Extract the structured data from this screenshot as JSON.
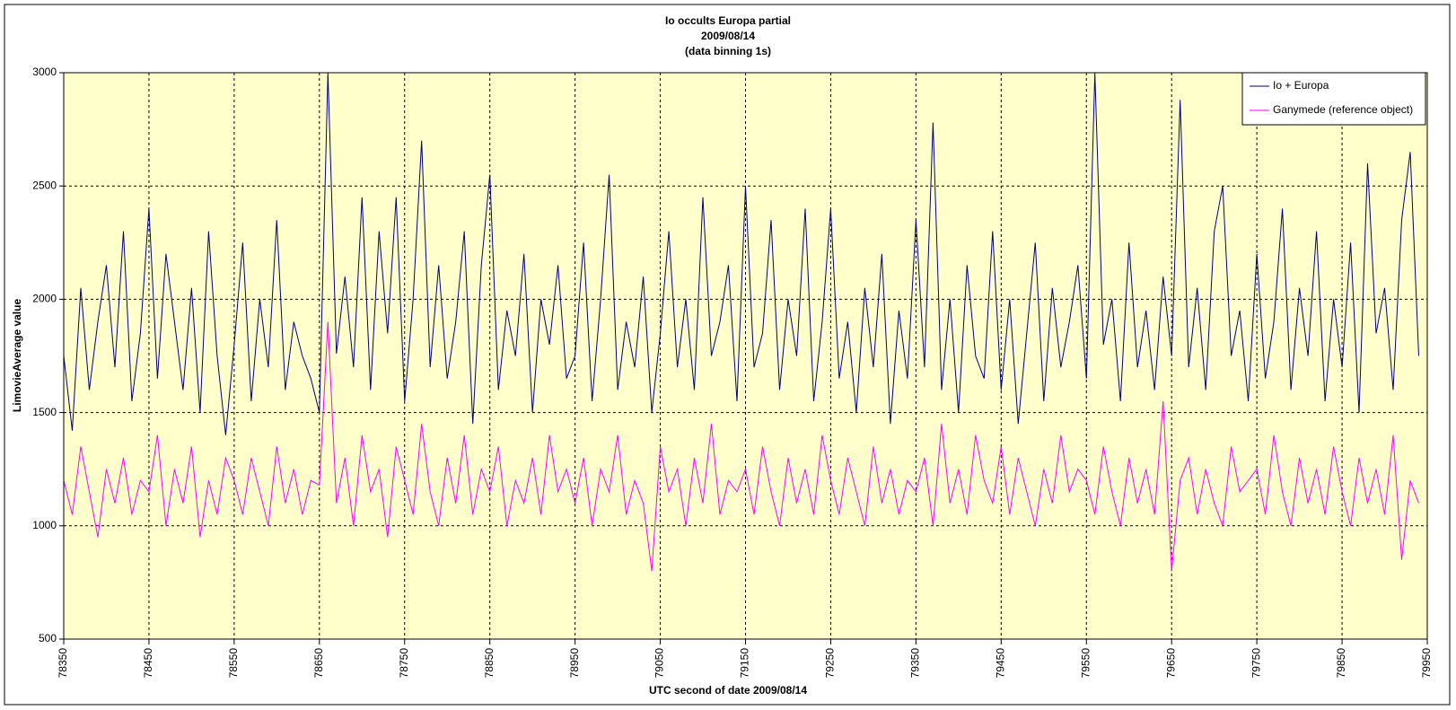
{
  "chart_data": {
    "type": "line",
    "title": [
      "Io occults Europa partial",
      "2009/08/14",
      "(data binning 1s)"
    ],
    "xlabel": "UTC second  of date 2009/08/14",
    "ylabel": "LimovieAverage value",
    "x": [
      78350,
      78360,
      78370,
      78380,
      78390,
      78400,
      78410,
      78420,
      78430,
      78440,
      78450,
      78460,
      78470,
      78480,
      78490,
      78500,
      78510,
      78520,
      78530,
      78540,
      78550,
      78560,
      78570,
      78580,
      78590,
      78600,
      78610,
      78620,
      78630,
      78640,
      78650,
      78660,
      78670,
      78680,
      78690,
      78700,
      78710,
      78720,
      78730,
      78740,
      78750,
      78760,
      78770,
      78780,
      78790,
      78800,
      78810,
      78820,
      78830,
      78840,
      78850,
      78860,
      78870,
      78880,
      78890,
      78900,
      78910,
      78920,
      78930,
      78940,
      78950,
      78960,
      78970,
      78980,
      78990,
      79000,
      79010,
      79020,
      79030,
      79040,
      79050,
      79060,
      79070,
      79080,
      79090,
      79100,
      79110,
      79120,
      79130,
      79140,
      79150,
      79160,
      79170,
      79180,
      79190,
      79200,
      79210,
      79220,
      79230,
      79240,
      79250,
      79260,
      79270,
      79280,
      79290,
      79300,
      79310,
      79320,
      79330,
      79340,
      79350,
      79360,
      79370,
      79380,
      79390,
      79400,
      79410,
      79420,
      79430,
      79440,
      79450,
      79460,
      79470,
      79480,
      79490,
      79500,
      79510,
      79520,
      79530,
      79540,
      79550,
      79560,
      79570,
      79580,
      79590,
      79600,
      79610,
      79620,
      79630,
      79640,
      79650,
      79660,
      79670,
      79680,
      79690,
      79700,
      79710,
      79720,
      79730,
      79740,
      79750,
      79760,
      79770,
      79780,
      79790,
      79800,
      79810,
      79820,
      79830,
      79840,
      79850,
      79860,
      79870,
      79880,
      79890,
      79900,
      79910,
      79920,
      79930,
      79940
    ],
    "series": [
      {
        "name": "Io + Europa",
        "color": "#000080",
        "values": [
          1750,
          1420,
          2050,
          1600,
          1900,
          2150,
          1700,
          2300,
          1550,
          1850,
          2400,
          1650,
          2200,
          1900,
          1600,
          2050,
          1500,
          2300,
          1750,
          1400,
          1800,
          2250,
          1550,
          2000,
          1700,
          2350,
          1600,
          1900,
          1750,
          1650,
          1500,
          3000,
          1760,
          2100,
          1700,
          2450,
          1600,
          2300,
          1850,
          2450,
          1550,
          2000,
          2700,
          1700,
          2150,
          1650,
          1900,
          2300,
          1450,
          2150,
          2550,
          1600,
          1950,
          1750,
          2200,
          1500,
          2000,
          1800,
          2150,
          1650,
          1750,
          2250,
          1550,
          2000,
          2550,
          1600,
          1900,
          1700,
          2100,
          1500,
          1850,
          2300,
          1700,
          2000,
          1600,
          2450,
          1750,
          1900,
          2150,
          1550,
          2500,
          1700,
          1850,
          2350,
          1600,
          2000,
          1750,
          2400,
          1550,
          1900,
          2400,
          1650,
          1900,
          1500,
          2050,
          1700,
          2200,
          1450,
          1950,
          1650,
          2350,
          1700,
          2780,
          1600,
          2000,
          1500,
          2150,
          1750,
          1650,
          2300,
          1600,
          2000,
          1450,
          1850,
          2250,
          1550,
          2050,
          1700,
          1900,
          2150,
          1650,
          3000,
          1800,
          2000,
          1550,
          2250,
          1700,
          1950,
          1600,
          2100,
          1750,
          2880,
          1700,
          2050,
          1600,
          2300,
          2500,
          1750,
          1950,
          1550,
          2200,
          1650,
          1900,
          2400,
          1600,
          2050,
          1750,
          2300,
          1550,
          2000,
          1700,
          2250,
          1500,
          2600,
          1850,
          2050,
          1600,
          2350,
          2650,
          1750
        ]
      },
      {
        "name": "Ganymede (reference object)",
        "color": "#ff00ff",
        "values": [
          1200,
          1050,
          1350,
          1150,
          950,
          1250,
          1100,
          1300,
          1050,
          1200,
          1150,
          1400,
          1000,
          1250,
          1100,
          1350,
          950,
          1200,
          1050,
          1300,
          1200,
          1050,
          1300,
          1150,
          1000,
          1350,
          1100,
          1250,
          1050,
          1200,
          1180,
          1900,
          1100,
          1300,
          1000,
          1400,
          1150,
          1250,
          950,
          1350,
          1200,
          1050,
          1450,
          1150,
          1000,
          1300,
          1100,
          1400,
          1050,
          1250,
          1150,
          1350,
          1000,
          1200,
          1100,
          1300,
          1050,
          1400,
          1150,
          1250,
          1100,
          1300,
          1000,
          1250,
          1150,
          1400,
          1050,
          1200,
          1100,
          800,
          1350,
          1150,
          1250,
          1000,
          1300,
          1100,
          1450,
          1050,
          1200,
          1150,
          1250,
          1050,
          1350,
          1150,
          1000,
          1300,
          1100,
          1250,
          1050,
          1400,
          1200,
          1050,
          1300,
          1150,
          1000,
          1350,
          1100,
          1250,
          1050,
          1200,
          1150,
          1300,
          1000,
          1450,
          1100,
          1250,
          1050,
          1400,
          1200,
          1100,
          1350,
          1050,
          1300,
          1150,
          1000,
          1250,
          1100,
          1400,
          1150,
          1250,
          1200,
          1050,
          1350,
          1150,
          1000,
          1300,
          1100,
          1250,
          1050,
          1550,
          800,
          1200,
          1300,
          1050,
          1250,
          1100,
          1000,
          1350,
          1150,
          1200,
          1250,
          1050,
          1400,
          1150,
          1000,
          1300,
          1100,
          1250,
          1050,
          1350,
          1150,
          1000,
          1300,
          1100,
          1250,
          1050,
          1400,
          850,
          1200,
          1100
        ]
      }
    ],
    "xlim": [
      78350,
      79950
    ],
    "xticks": [
      78350,
      78450,
      78550,
      78650,
      78750,
      78850,
      78950,
      79050,
      79150,
      79250,
      79350,
      79450,
      79550,
      79650,
      79750,
      79850,
      79950
    ],
    "ylim": [
      500,
      3000
    ],
    "yticks": [
      500,
      1000,
      1500,
      2000,
      2500,
      3000
    ],
    "grid": true,
    "legend": "upper right",
    "background": "#ffffcc"
  }
}
